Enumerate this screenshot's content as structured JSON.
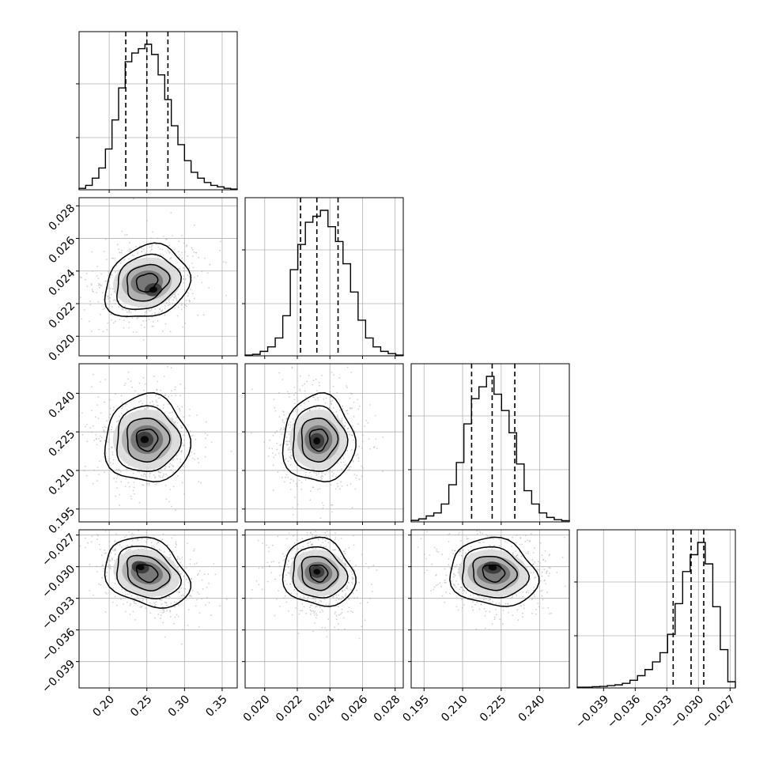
{
  "chart_data": {
    "type": "corner",
    "grid": true,
    "parameters": 4,
    "variables": [
      {
        "range": [
          0.16,
          0.37
        ],
        "ticks": [
          0.2,
          0.25,
          0.3,
          0.35
        ],
        "tick_labels": [
          "0.20",
          "0.25",
          "0.30",
          "0.35"
        ],
        "quantiles": [
          0.222,
          0.25,
          0.278
        ],
        "mean": 0.25,
        "sd": 0.028,
        "hist_heights": [
          0.01,
          0.03,
          0.08,
          0.15,
          0.28,
          0.48,
          0.7,
          0.88,
          0.94,
          0.97,
          1.0,
          0.93,
          0.79,
          0.62,
          0.44,
          0.31,
          0.2,
          0.12,
          0.08,
          0.05,
          0.03,
          0.02,
          0.01,
          0.005
        ]
      },
      {
        "range": [
          0.0188,
          0.0285
        ],
        "ticks": [
          0.02,
          0.022,
          0.024,
          0.026,
          0.028
        ],
        "tick_labels": [
          "0.020",
          "0.022",
          "0.024",
          "0.026",
          "0.028"
        ],
        "quantiles": [
          0.0222,
          0.0232,
          0.0245
        ],
        "mean": 0.0233,
        "sd": 0.0011,
        "hist_heights": [
          0.005,
          0.01,
          0.03,
          0.06,
          0.12,
          0.27,
          0.58,
          0.75,
          0.9,
          0.94,
          0.98,
          0.87,
          0.77,
          0.62,
          0.43,
          0.24,
          0.12,
          0.06,
          0.03,
          0.015,
          0.005
        ]
      },
      {
        "range": [
          0.19,
          0.2515
        ],
        "ticks": [
          0.195,
          0.21,
          0.225,
          0.24
        ],
        "tick_labels": [
          "0.195",
          "0.210",
          "0.225",
          "0.240"
        ],
        "quantiles": [
          0.2135,
          0.2215,
          0.2303
        ],
        "mean": 0.222,
        "sd": 0.0085,
        "hist_heights": [
          0.01,
          0.02,
          0.04,
          0.06,
          0.12,
          0.25,
          0.4,
          0.66,
          0.83,
          0.91,
          0.98,
          0.86,
          0.75,
          0.6,
          0.39,
          0.21,
          0.12,
          0.06,
          0.03,
          0.015,
          0.008
        ]
      },
      {
        "range": [
          -0.0415,
          -0.0265
        ],
        "ticks": [
          -0.039,
          -0.036,
          -0.033,
          -0.03,
          -0.027
        ],
        "tick_labels": [
          "−0.039",
          "−0.036",
          "−0.033",
          "−0.030",
          "−0.027"
        ],
        "quantiles": [
          -0.0324,
          -0.0307,
          -0.0295
        ],
        "mean": -0.0306,
        "sd": 0.0016,
        "hist_heights": [
          0.005,
          0.005,
          0.008,
          0.01,
          0.015,
          0.02,
          0.03,
          0.05,
          0.08,
          0.12,
          0.17,
          0.23,
          0.35,
          0.55,
          0.76,
          0.87,
          0.95,
          0.81,
          0.53,
          0.25,
          0.04
        ]
      }
    ],
    "pairs": [
      {
        "x": 0,
        "y": 1,
        "density_peak": [
          0.257,
          0.0228
        ]
      },
      {
        "x": 0,
        "y": 2,
        "density_peak": [
          0.247,
          0.222
        ]
      },
      {
        "x": 1,
        "y": 2,
        "density_peak": [
          0.0232,
          0.2215
        ]
      },
      {
        "x": 0,
        "y": 3,
        "density_peak": [
          0.24,
          -0.0302
        ]
      },
      {
        "x": 1,
        "y": 3,
        "density_peak": [
          0.0232,
          -0.0305
        ]
      },
      {
        "x": 2,
        "y": 3,
        "density_peak": [
          0.2215,
          -0.0301
        ]
      }
    ]
  },
  "style": {
    "hist_color": "#000000",
    "contour_color": "#000000",
    "grid_color": "#b0b0b0",
    "scatter_color": "#aaaaaa"
  }
}
